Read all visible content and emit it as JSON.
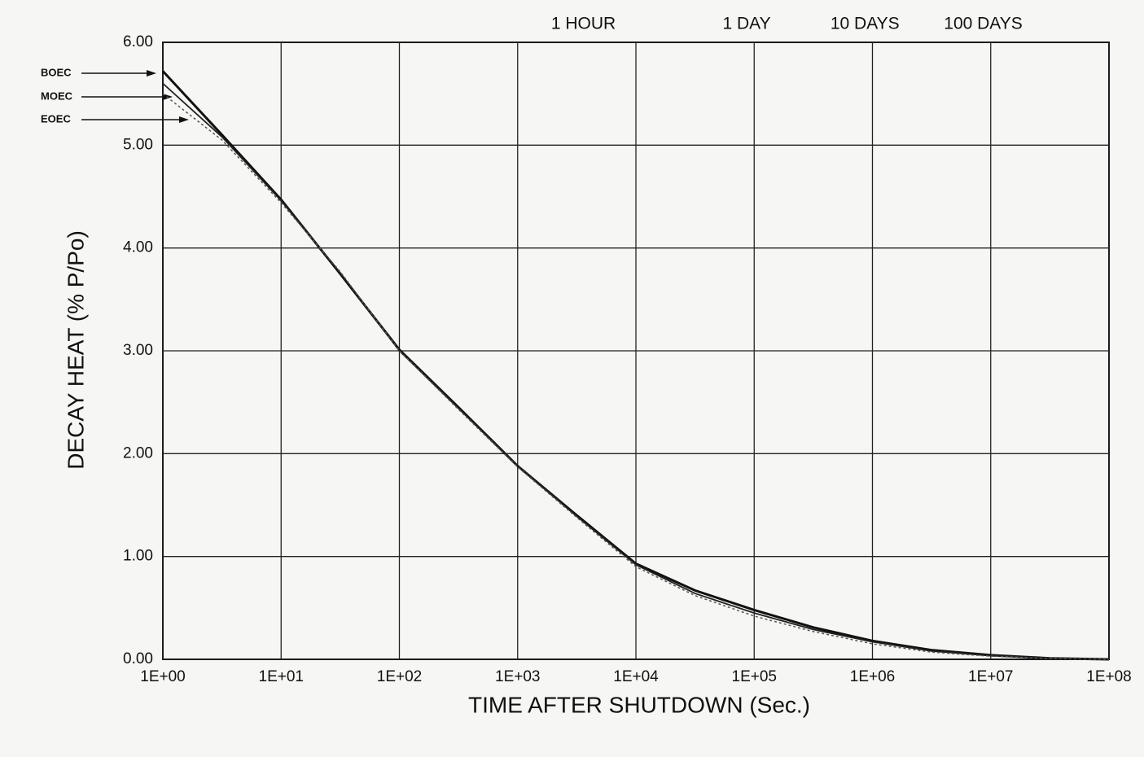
{
  "chart_data": {
    "type": "line",
    "xlabel": "TIME AFTER SHUTDOWN (Sec.)",
    "ylabel": "DECAY HEAT (% P/Po)",
    "x": [
      1,
      3.16,
      10,
      31.6,
      100,
      316,
      1000,
      3162,
      10000,
      31623,
      100000,
      316228,
      1000000,
      3162278,
      10000000,
      31622777,
      100000000
    ],
    "series": [
      {
        "name": "BOEC",
        "color": "#111111",
        "values": [
          5.72,
          5.1,
          4.47,
          3.75,
          3.01,
          2.45,
          1.88,
          1.4,
          0.93,
          0.67,
          0.48,
          0.31,
          0.18,
          0.09,
          0.04,
          0.01,
          0.0
        ]
      },
      {
        "name": "MOEC",
        "color": "#222222",
        "values": [
          5.6,
          5.08,
          4.46,
          3.76,
          3.0,
          2.44,
          1.88,
          1.39,
          0.92,
          0.64,
          0.45,
          0.29,
          0.17,
          0.08,
          0.035,
          0.01,
          0.0
        ]
      },
      {
        "name": "EOEC",
        "color": "#555555",
        "values": [
          5.5,
          5.05,
          4.44,
          3.77,
          3.0,
          2.43,
          1.87,
          1.38,
          0.9,
          0.62,
          0.42,
          0.27,
          0.15,
          0.07,
          0.03,
          0.008,
          0.0
        ]
      }
    ],
    "xscale": "log",
    "xlim": [
      1,
      100000000
    ],
    "ylim": [
      0,
      6
    ],
    "xticks": [
      {
        "value": 1,
        "label": "1E+00"
      },
      {
        "value": 10,
        "label": "1E+01"
      },
      {
        "value": 100,
        "label": "1E+02"
      },
      {
        "value": 1000,
        "label": "1E+03"
      },
      {
        "value": 10000,
        "label": "1E+04"
      },
      {
        "value": 100000,
        "label": "1E+05"
      },
      {
        "value": 1000000,
        "label": "1E+06"
      },
      {
        "value": 10000000,
        "label": "1E+07"
      },
      {
        "value": 100000000,
        "label": "1E+08"
      }
    ],
    "yticks": [
      {
        "value": 0,
        "label": "0.00"
      },
      {
        "value": 1,
        "label": "1.00"
      },
      {
        "value": 2,
        "label": "2.00"
      },
      {
        "value": 3,
        "label": "3.00"
      },
      {
        "value": 4,
        "label": "4.00"
      },
      {
        "value": 5,
        "label": "5.00"
      },
      {
        "value": 6,
        "label": "6.00"
      }
    ],
    "grid": true,
    "annotations": [
      {
        "text": "1 HOUR",
        "x": 3600
      },
      {
        "text": "1 DAY",
        "x": 86400
      },
      {
        "text": "10 DAYS",
        "x": 864000
      },
      {
        "text": "100 DAYS",
        "x": 8640000
      }
    ]
  }
}
